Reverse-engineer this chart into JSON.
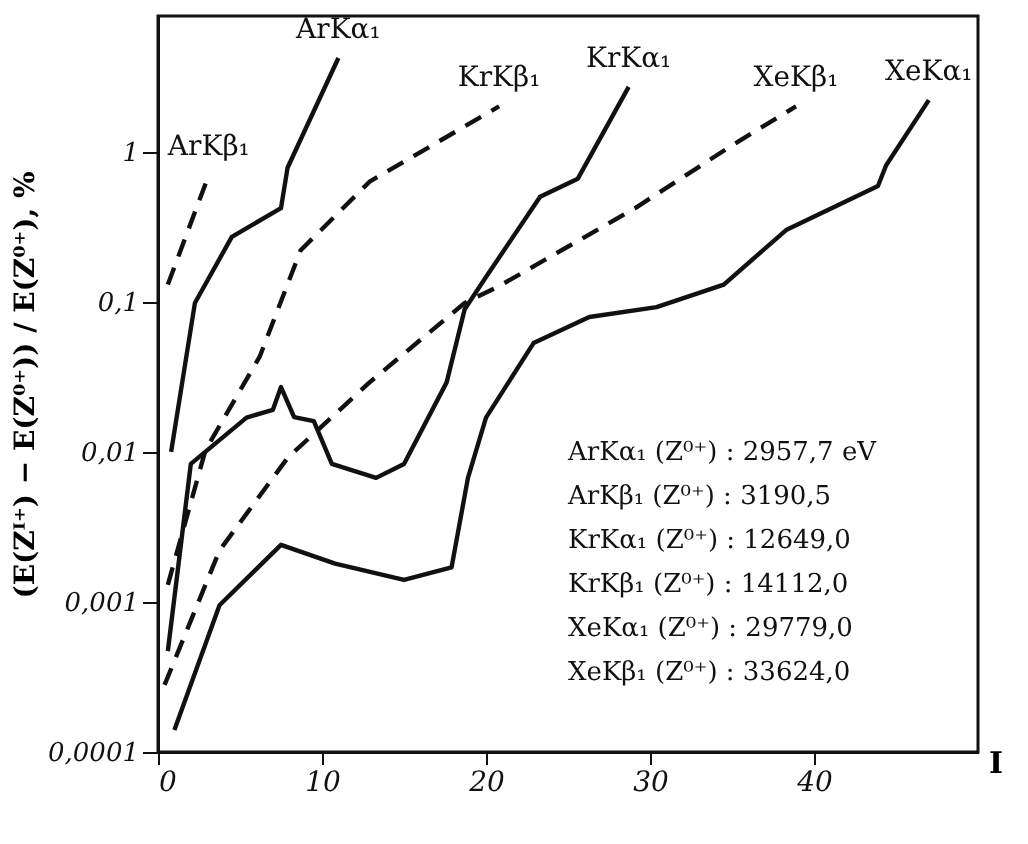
{
  "chart_data": {
    "type": "line",
    "xlabel": "I",
    "ylabel": "(E(Zᴵ⁺) − E(Z⁰⁺)) / E(Z⁰⁺), %",
    "log": "y",
    "grid": false,
    "marker": "none",
    "xlim": [
      0,
      50
    ],
    "ylim": [
      0.0001,
      8
    ],
    "xticks": [
      0,
      10,
      20,
      30,
      40
    ],
    "yticks": [
      {
        "value": 0.0001,
        "label": "0,0001"
      },
      {
        "value": 0.001,
        "label": "0,001"
      },
      {
        "value": 0.01,
        "label": "0,01"
      },
      {
        "value": 0.1,
        "label": "0,1"
      },
      {
        "value": 1,
        "label": "1"
      }
    ],
    "series": [
      {
        "name": "ArKα₁",
        "color": "#111111",
        "line_style": "solid",
        "x": [
          0.8,
          2.25,
          4.5,
          7.5,
          7.9,
          11
        ],
        "values": [
          0.01,
          0.098,
          0.27,
          0.42,
          0.78,
          4.2
        ]
      },
      {
        "name": "ArKβ₁",
        "color": "#111111",
        "line_style": "dashed",
        "x": [
          0.6,
          3.1
        ],
        "values": [
          0.13,
          0.7
        ]
      },
      {
        "name": "KrKβ₁",
        "color": "#111111",
        "line_style": "dashed",
        "x": [
          0.6,
          2.9,
          6.2,
          8.7,
          12.9,
          20.8
        ],
        "values": [
          0.0013,
          0.0103,
          0.043,
          0.22,
          0.63,
          2.0
        ]
      },
      {
        "name": "KrKα₁",
        "color": "#111111",
        "line_style": "solid",
        "x": [
          0.6,
          2,
          5.4,
          7,
          7.5,
          8.3,
          9.5,
          10.6,
          13.3,
          15,
          17.6,
          18.7,
          20,
          23.3,
          25.6,
          28.7
        ],
        "values": [
          0.00047,
          0.0083,
          0.0169,
          0.019,
          0.027,
          0.017,
          0.016,
          0.0083,
          0.0067,
          0.0083,
          0.029,
          0.089,
          0.146,
          0.5,
          0.66,
          2.7
        ]
      },
      {
        "name": "XeKβ₁",
        "color": "#111111",
        "line_style": "dashed",
        "x": [
          0.4,
          3.75,
          7.9,
          12.9,
          18.7,
          20.8,
          29.1,
          35,
          38.9
        ],
        "values": [
          0.00028,
          0.0022,
          0.0091,
          0.029,
          0.098,
          0.127,
          0.42,
          1.1,
          2.0
        ]
      },
      {
        "name": "XeKα₁",
        "color": "#111111",
        "line_style": "solid",
        "x": [
          1,
          3.75,
          7.5,
          10.8,
          15,
          17.9,
          18.9,
          20,
          22.9,
          26.3,
          30.4,
          34.5,
          38.3,
          43.9,
          44.4,
          47
        ],
        "values": [
          0.00014,
          0.00095,
          0.0024,
          0.0018,
          0.0014,
          0.0017,
          0.0067,
          0.0169,
          0.053,
          0.079,
          0.092,
          0.13,
          0.3,
          0.59,
          0.81,
          2.2
        ]
      }
    ],
    "annotations": [
      "ArKα₁ (Z⁰⁺) :  2957,7 eV",
      "ArKβ₁ (Z⁰⁺) :  3190,5",
      "KrKα₁ (Z⁰⁺) : 12649,0",
      "KrKβ₁ (Z⁰⁺) : 14112,0",
      "XeKα₁ (Z⁰⁺) : 29779,0",
      "XeKβ₁ (Z⁰⁺) : 33624,0"
    ]
  }
}
